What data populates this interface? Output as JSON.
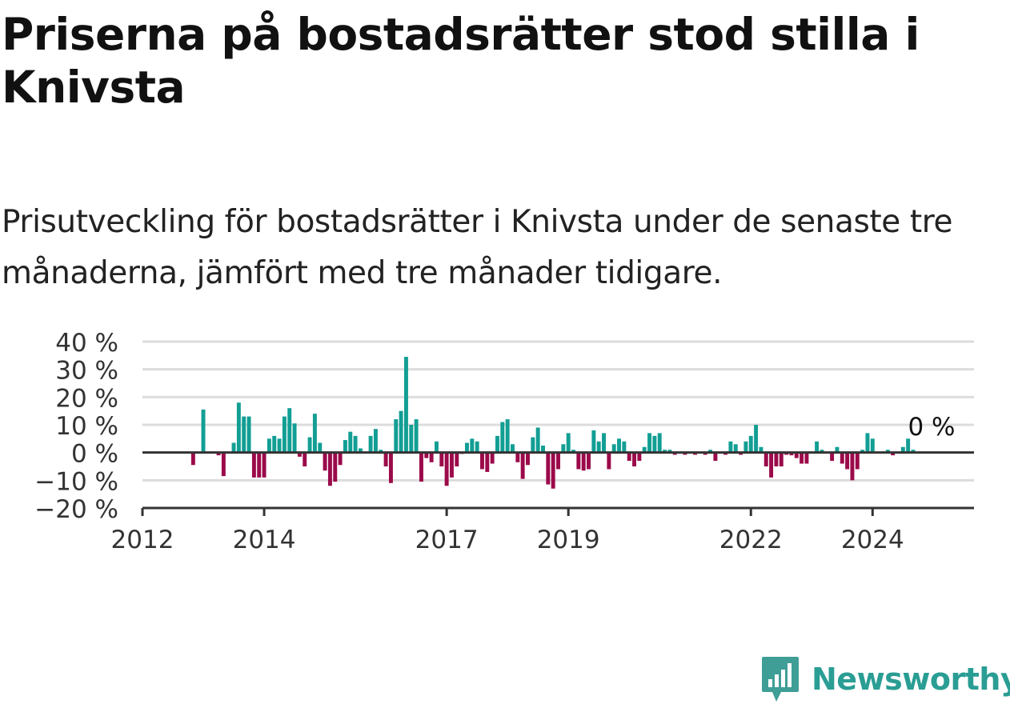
{
  "header": {
    "title": "Priserna på bostadsrätter stod stilla i Knivsta",
    "subtitle": "Prisutveckling för bostadsrätter i Knivsta under de senaste tre månaderna, jämfört med tre månader tidigare."
  },
  "brand": {
    "name": "Newsworthy",
    "icon": "newsworthy-logo-icon",
    "color": "#3f9e96"
  },
  "colors": {
    "positive": "#129e94",
    "negative": "#9b0a4a",
    "grid": "#dcdcdc",
    "axis": "#333333"
  },
  "chart_data": {
    "type": "bar",
    "x_start": "2012-01",
    "x_end": "2025-09",
    "x_ticks": [
      {
        "label": "2012",
        "date": "2012-01"
      },
      {
        "label": "2014",
        "date": "2014-01"
      },
      {
        "label": "2017",
        "date": "2017-01"
      },
      {
        "label": "2019",
        "date": "2019-01"
      },
      {
        "label": "2022",
        "date": "2022-01"
      },
      {
        "label": "2024",
        "date": "2024-01"
      }
    ],
    "y_ticks": [
      {
        "label": "40 %",
        "value": 40
      },
      {
        "label": "30 %",
        "value": 30
      },
      {
        "label": "20 %",
        "value": 20
      },
      {
        "label": "10 %",
        "value": 10
      },
      {
        "label": "0 %",
        "value": 0
      },
      {
        "label": "−10 %",
        "value": -10
      },
      {
        "label": "−20 %",
        "value": -20
      }
    ],
    "ylim": [
      -20,
      40
    ],
    "grid": true,
    "annotation": {
      "text": "0 %",
      "date": "2024-12"
    },
    "series": [
      {
        "values": [
          {
            "date": "2012-11",
            "value": -4.5
          },
          {
            "date": "2013-01",
            "value": 15.5
          },
          {
            "date": "2013-04",
            "value": -1
          },
          {
            "date": "2013-05",
            "value": -8.5
          },
          {
            "date": "2013-07",
            "value": 3.5
          },
          {
            "date": "2013-08",
            "value": 18
          },
          {
            "date": "2013-09",
            "value": 13
          },
          {
            "date": "2013-10",
            "value": 13
          },
          {
            "date": "2013-11",
            "value": -9
          },
          {
            "date": "2013-12",
            "value": -9
          },
          {
            "date": "2014-01",
            "value": -9
          },
          {
            "date": "2014-02",
            "value": 5
          },
          {
            "date": "2014-03",
            "value": 6
          },
          {
            "date": "2014-04",
            "value": 5
          },
          {
            "date": "2014-05",
            "value": 13
          },
          {
            "date": "2014-06",
            "value": 16
          },
          {
            "date": "2014-07",
            "value": 10.5
          },
          {
            "date": "2014-08",
            "value": -1.5
          },
          {
            "date": "2014-09",
            "value": -5
          },
          {
            "date": "2014-10",
            "value": 5.5
          },
          {
            "date": "2014-11",
            "value": 14
          },
          {
            "date": "2014-12",
            "value": 3.5
          },
          {
            "date": "2015-01",
            "value": -6.5
          },
          {
            "date": "2015-02",
            "value": -12
          },
          {
            "date": "2015-03",
            "value": -10.5
          },
          {
            "date": "2015-04",
            "value": -4.5
          },
          {
            "date": "2015-05",
            "value": 4.5
          },
          {
            "date": "2015-06",
            "value": 7.5
          },
          {
            "date": "2015-07",
            "value": 6
          },
          {
            "date": "2015-08",
            "value": 1.5
          },
          {
            "date": "2015-10",
            "value": 6
          },
          {
            "date": "2015-11",
            "value": 8.5
          },
          {
            "date": "2015-12",
            "value": 1
          },
          {
            "date": "2016-01",
            "value": -5
          },
          {
            "date": "2016-02",
            "value": -11
          },
          {
            "date": "2016-03",
            "value": 12
          },
          {
            "date": "2016-04",
            "value": 15
          },
          {
            "date": "2016-05",
            "value": 34.5
          },
          {
            "date": "2016-06",
            "value": 10
          },
          {
            "date": "2016-07",
            "value": 12
          },
          {
            "date": "2016-08",
            "value": -10.5
          },
          {
            "date": "2016-09",
            "value": -2
          },
          {
            "date": "2016-10",
            "value": -3.5
          },
          {
            "date": "2016-11",
            "value": 4
          },
          {
            "date": "2016-12",
            "value": -5
          },
          {
            "date": "2017-01",
            "value": -12
          },
          {
            "date": "2017-02",
            "value": -9
          },
          {
            "date": "2017-03",
            "value": -5
          },
          {
            "date": "2017-04",
            "value": -0.5
          },
          {
            "date": "2017-05",
            "value": 3.5
          },
          {
            "date": "2017-06",
            "value": 5
          },
          {
            "date": "2017-07",
            "value": 4
          },
          {
            "date": "2017-08",
            "value": -6
          },
          {
            "date": "2017-09",
            "value": -7
          },
          {
            "date": "2017-10",
            "value": -4
          },
          {
            "date": "2017-11",
            "value": 6
          },
          {
            "date": "2017-12",
            "value": 11
          },
          {
            "date": "2018-01",
            "value": 12
          },
          {
            "date": "2018-02",
            "value": 3
          },
          {
            "date": "2018-03",
            "value": -3.5
          },
          {
            "date": "2018-04",
            "value": -9.5
          },
          {
            "date": "2018-05",
            "value": -4.5
          },
          {
            "date": "2018-06",
            "value": 5.5
          },
          {
            "date": "2018-07",
            "value": 9
          },
          {
            "date": "2018-08",
            "value": 2.5
          },
          {
            "date": "2018-09",
            "value": -11.5
          },
          {
            "date": "2018-10",
            "value": -13
          },
          {
            "date": "2018-11",
            "value": -6
          },
          {
            "date": "2018-12",
            "value": 3
          },
          {
            "date": "2019-01",
            "value": 7
          },
          {
            "date": "2019-02",
            "value": 1
          },
          {
            "date": "2019-03",
            "value": -6
          },
          {
            "date": "2019-04",
            "value": -6.5
          },
          {
            "date": "2019-05",
            "value": -6
          },
          {
            "date": "2019-06",
            "value": 8
          },
          {
            "date": "2019-07",
            "value": 4
          },
          {
            "date": "2019-08",
            "value": 7
          },
          {
            "date": "2019-09",
            "value": -6
          },
          {
            "date": "2019-10",
            "value": 3
          },
          {
            "date": "2019-11",
            "value": 5
          },
          {
            "date": "2019-12",
            "value": 4
          },
          {
            "date": "2020-01",
            "value": -3
          },
          {
            "date": "2020-02",
            "value": -5
          },
          {
            "date": "2020-03",
            "value": -3
          },
          {
            "date": "2020-04",
            "value": 2
          },
          {
            "date": "2020-05",
            "value": 7
          },
          {
            "date": "2020-06",
            "value": 6
          },
          {
            "date": "2020-07",
            "value": 7
          },
          {
            "date": "2020-08",
            "value": 1
          },
          {
            "date": "2020-09",
            "value": 1
          },
          {
            "date": "2020-10",
            "value": -0.8
          },
          {
            "date": "2020-12",
            "value": -0.8
          },
          {
            "date": "2021-02",
            "value": -0.8
          },
          {
            "date": "2021-04",
            "value": -0.8
          },
          {
            "date": "2021-05",
            "value": 1
          },
          {
            "date": "2021-06",
            "value": -3
          },
          {
            "date": "2021-08",
            "value": -0.8
          },
          {
            "date": "2021-09",
            "value": 4
          },
          {
            "date": "2021-10",
            "value": 3
          },
          {
            "date": "2021-11",
            "value": -0.8
          },
          {
            "date": "2021-12",
            "value": 4
          },
          {
            "date": "2022-01",
            "value": 6
          },
          {
            "date": "2022-02",
            "value": 10
          },
          {
            "date": "2022-03",
            "value": 2
          },
          {
            "date": "2022-04",
            "value": -5
          },
          {
            "date": "2022-05",
            "value": -9
          },
          {
            "date": "2022-06",
            "value": -5
          },
          {
            "date": "2022-07",
            "value": -5
          },
          {
            "date": "2022-08",
            "value": -0.8
          },
          {
            "date": "2022-09",
            "value": -1
          },
          {
            "date": "2022-10",
            "value": -2
          },
          {
            "date": "2022-11",
            "value": -4
          },
          {
            "date": "2022-12",
            "value": -4
          },
          {
            "date": "2023-02",
            "value": 4
          },
          {
            "date": "2023-03",
            "value": 1
          },
          {
            "date": "2023-05",
            "value": -3
          },
          {
            "date": "2023-06",
            "value": 2
          },
          {
            "date": "2023-07",
            "value": -4
          },
          {
            "date": "2023-08",
            "value": -6
          },
          {
            "date": "2023-09",
            "value": -10
          },
          {
            "date": "2023-10",
            "value": -6
          },
          {
            "date": "2023-11",
            "value": 1
          },
          {
            "date": "2023-12",
            "value": 7
          },
          {
            "date": "2024-01",
            "value": 5
          },
          {
            "date": "2024-04",
            "value": 1
          },
          {
            "date": "2024-05",
            "value": -1
          },
          {
            "date": "2024-07",
            "value": 2
          },
          {
            "date": "2024-08",
            "value": 5
          },
          {
            "date": "2024-09",
            "value": 1
          }
        ]
      }
    ]
  }
}
